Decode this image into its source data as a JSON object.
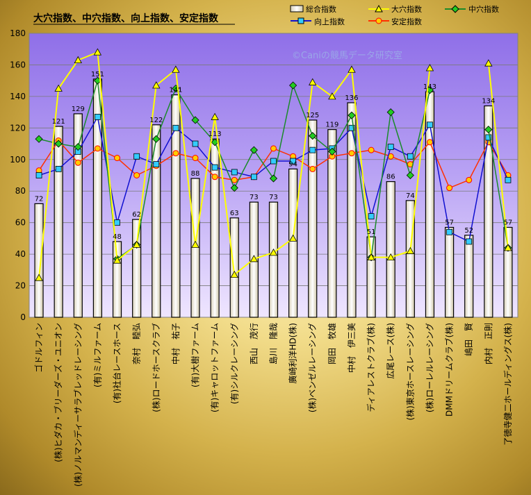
{
  "chart_data": {
    "type": "bar",
    "title": "大穴指数、中穴指数、向上指数、安定指数",
    "watermark": "©Caniの競馬データ研究室",
    "ylim": [
      0,
      180
    ],
    "yticks": [
      "0",
      "20",
      "40",
      "60",
      "80",
      "100",
      "120",
      "140",
      "160",
      "180"
    ],
    "categories": [
      "ゴドルフィン",
      "(株)ヒダカ・ブリーダーズ・ユニオン",
      "(株)ノルマンディーサラブレッドレーシング",
      "(有)ミルファーム",
      "(有)社台レースホース",
      "奈村　睦弘",
      "(株)ロードホースクラブ",
      "中村　祐子",
      "(有)大樹ファーム",
      "(有)キャロットファーム",
      "(有)シルクレーシング",
      "西山　茂行",
      "島川　隆哉",
      "廣崎利洋HD(株)",
      "(株)ベンゼルレーシング",
      "岡田　牧雄",
      "中村　伊三美",
      "ディアレストクラブ(株)",
      "広尾レース(株)",
      "(株)東京ホースレーシング",
      "(株)ローレルレーシング",
      "DMMドリームクラブ(株)",
      "嶋田　賢",
      "内村　正則",
      "了徳寺健二ホールディングス(株)"
    ],
    "legend": {
      "total": "総合指数",
      "daiana": "大穴指数",
      "chuana": "中穴指数",
      "kojo": "向上指数",
      "antei": "安定指数"
    },
    "series": [
      {
        "key": "total",
        "name": "総合指数",
        "type": "bar",
        "color": "#f5f0d8",
        "labels": [
          "72",
          "121",
          "129",
          "151",
          "48",
          "62",
          "122",
          "141",
          "88",
          "113",
          "63",
          "73",
          "73",
          "94",
          "125",
          "119",
          "136",
          "51",
          "86",
          "74",
          "143",
          "57",
          "52",
          "134",
          "57"
        ],
        "values": [
          72,
          121,
          129,
          151,
          48,
          62,
          122,
          141,
          88,
          113,
          63,
          73,
          73,
          94,
          125,
          119,
          136,
          51,
          86,
          74,
          143,
          57,
          52,
          134,
          57
        ]
      },
      {
        "key": "daiana",
        "name": "大穴指数",
        "type": "line",
        "color": "#ffff00",
        "marker": "triangle",
        "values": [
          25,
          145,
          163,
          168,
          36,
          46,
          147,
          157,
          46,
          127,
          27,
          37,
          41,
          50,
          149,
          140,
          157,
          38,
          38,
          42,
          158,
          null,
          null,
          161,
          44
        ]
      },
      {
        "key": "chuana",
        "name": "中穴指数",
        "type": "line",
        "color": "#1a8a2a",
        "marker": "diamond",
        "values": [
          113,
          110,
          108,
          150,
          37,
          46,
          113,
          145,
          125,
          111,
          82,
          106,
          88,
          147,
          115,
          105,
          128,
          38,
          130,
          90,
          144,
          null,
          null,
          119,
          44
        ]
      },
      {
        "key": "kojo",
        "name": "向上指数",
        "type": "line",
        "color": "#1010d0",
        "marker": "square",
        "values": [
          90,
          94,
          105,
          127,
          60,
          102,
          97,
          120,
          110,
          95,
          92,
          89,
          99,
          99,
          106,
          107,
          120,
          64,
          108,
          102,
          122,
          54,
          48,
          114,
          87
        ]
      },
      {
        "key": "antei",
        "name": "安定指数",
        "type": "line",
        "color": "#ff3000",
        "marker": "circle",
        "values": [
          93,
          112,
          98,
          107,
          101,
          90,
          96,
          104,
          101,
          89,
          87,
          89,
          107,
          102,
          94,
          102,
          104,
          106,
          102,
          97,
          111,
          82,
          87,
          111,
          90
        ]
      }
    ]
  }
}
